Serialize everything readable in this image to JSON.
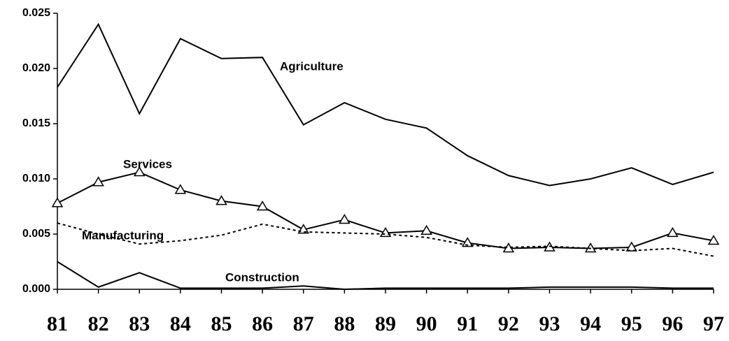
{
  "chart_data": {
    "type": "line",
    "categories": [
      "81",
      "82",
      "83",
      "84",
      "85",
      "86",
      "87",
      "88",
      "89",
      "90",
      "91",
      "92",
      "93",
      "94",
      "95",
      "96",
      "97"
    ],
    "ylim": [
      0,
      0.025
    ],
    "yticks": [
      {
        "value": 0,
        "label": "0.000"
      },
      {
        "value": 0.005,
        "label": "0.005"
      },
      {
        "value": 0.01,
        "label": "0.010"
      },
      {
        "value": 0.015,
        "label": "0.015"
      },
      {
        "value": 0.02,
        "label": "0.020"
      },
      {
        "value": 0.025,
        "label": "0.025"
      }
    ],
    "grid": false,
    "series": [
      {
        "name": "Agriculture",
        "color": "#000000",
        "dashed": false,
        "marker": "none",
        "values": [
          0.0183,
          0.024,
          0.0159,
          0.0227,
          0.0209,
          0.021,
          0.0149,
          0.0169,
          0.0154,
          0.0146,
          0.0121,
          0.0103,
          0.0094,
          0.01,
          0.011,
          0.0095,
          0.0106
        ]
      },
      {
        "name": "Services",
        "color": "#000000",
        "dashed": false,
        "marker": "triangle",
        "values": [
          0.0078,
          0.0097,
          0.0106,
          0.009,
          0.008,
          0.0075,
          0.0054,
          0.0063,
          0.0051,
          0.0053,
          0.0042,
          0.0037,
          0.0038,
          0.0037,
          0.0038,
          0.0051,
          0.0044
        ]
      },
      {
        "name": "Manufacturing",
        "color": "#000000",
        "dashed": true,
        "marker": "none",
        "values": [
          0.006,
          0.005,
          0.0041,
          0.0044,
          0.0049,
          0.0059,
          0.0052,
          0.0051,
          0.005,
          0.0047,
          0.004,
          0.0038,
          0.0039,
          0.0037,
          0.0035,
          0.0037,
          0.003
        ]
      },
      {
        "name": "Construction",
        "color": "#000000",
        "dashed": false,
        "marker": "none",
        "values": [
          0.0025,
          0.0002,
          0.0015,
          0.0001,
          0.0001,
          0.0001,
          0.0003,
          0.0,
          0.0001,
          0.0001,
          0.0001,
          0.0001,
          0.0002,
          0.0002,
          0.0002,
          0.0001,
          0.0001
        ]
      }
    ]
  }
}
